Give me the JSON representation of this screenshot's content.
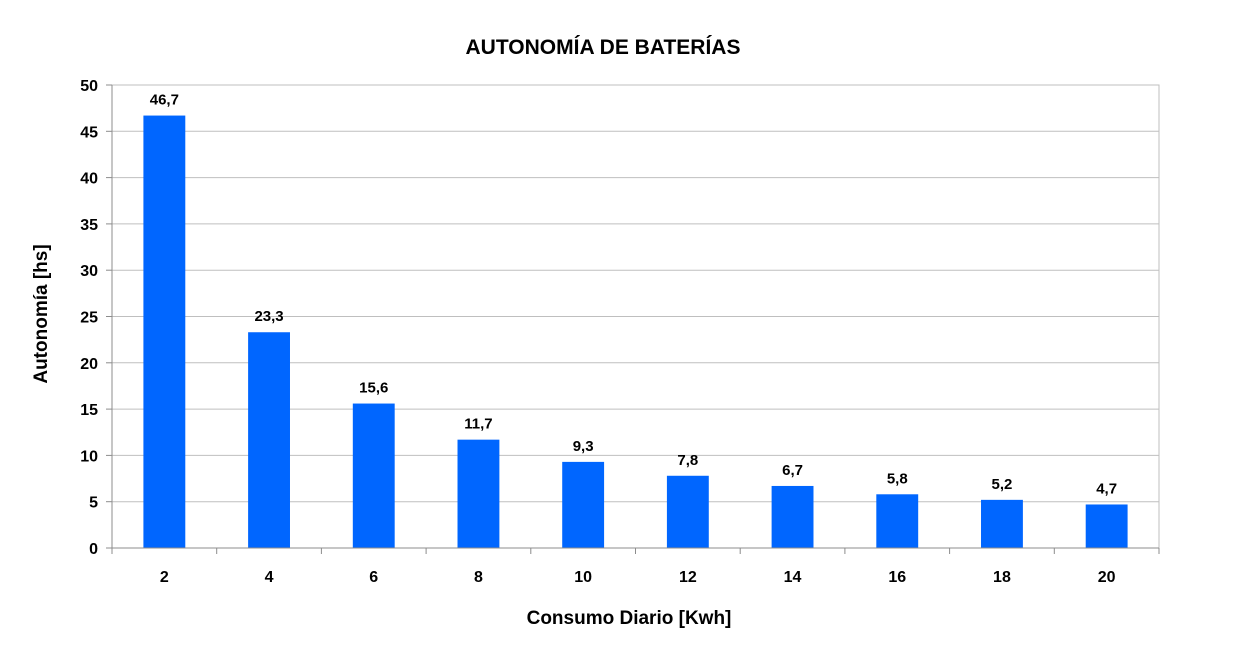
{
  "chart_data": {
    "type": "bar",
    "title": "AUTONOMÍA DE BATERÍAS",
    "xlabel": "Consumo Diario [Kwh]",
    "ylabel": "Autonomía [hs]",
    "categories": [
      "2",
      "4",
      "6",
      "8",
      "10",
      "12",
      "14",
      "16",
      "18",
      "20"
    ],
    "series": [
      {
        "values": [
          46.7,
          23.3,
          15.6,
          11.7,
          9.3,
          7.8,
          6.7,
          5.8,
          5.2,
          4.7
        ],
        "value_labels": [
          "46,7",
          "23,3",
          "15,6",
          "11,7",
          "9,3",
          "7,8",
          "6,7",
          "5,8",
          "5,2",
          "4,7"
        ],
        "color": "#0066ff"
      }
    ],
    "ylim": [
      0,
      50
    ],
    "yticks": [
      0,
      5,
      10,
      15,
      20,
      25,
      30,
      35,
      40,
      45,
      50
    ],
    "grid": true,
    "legend": "none"
  }
}
